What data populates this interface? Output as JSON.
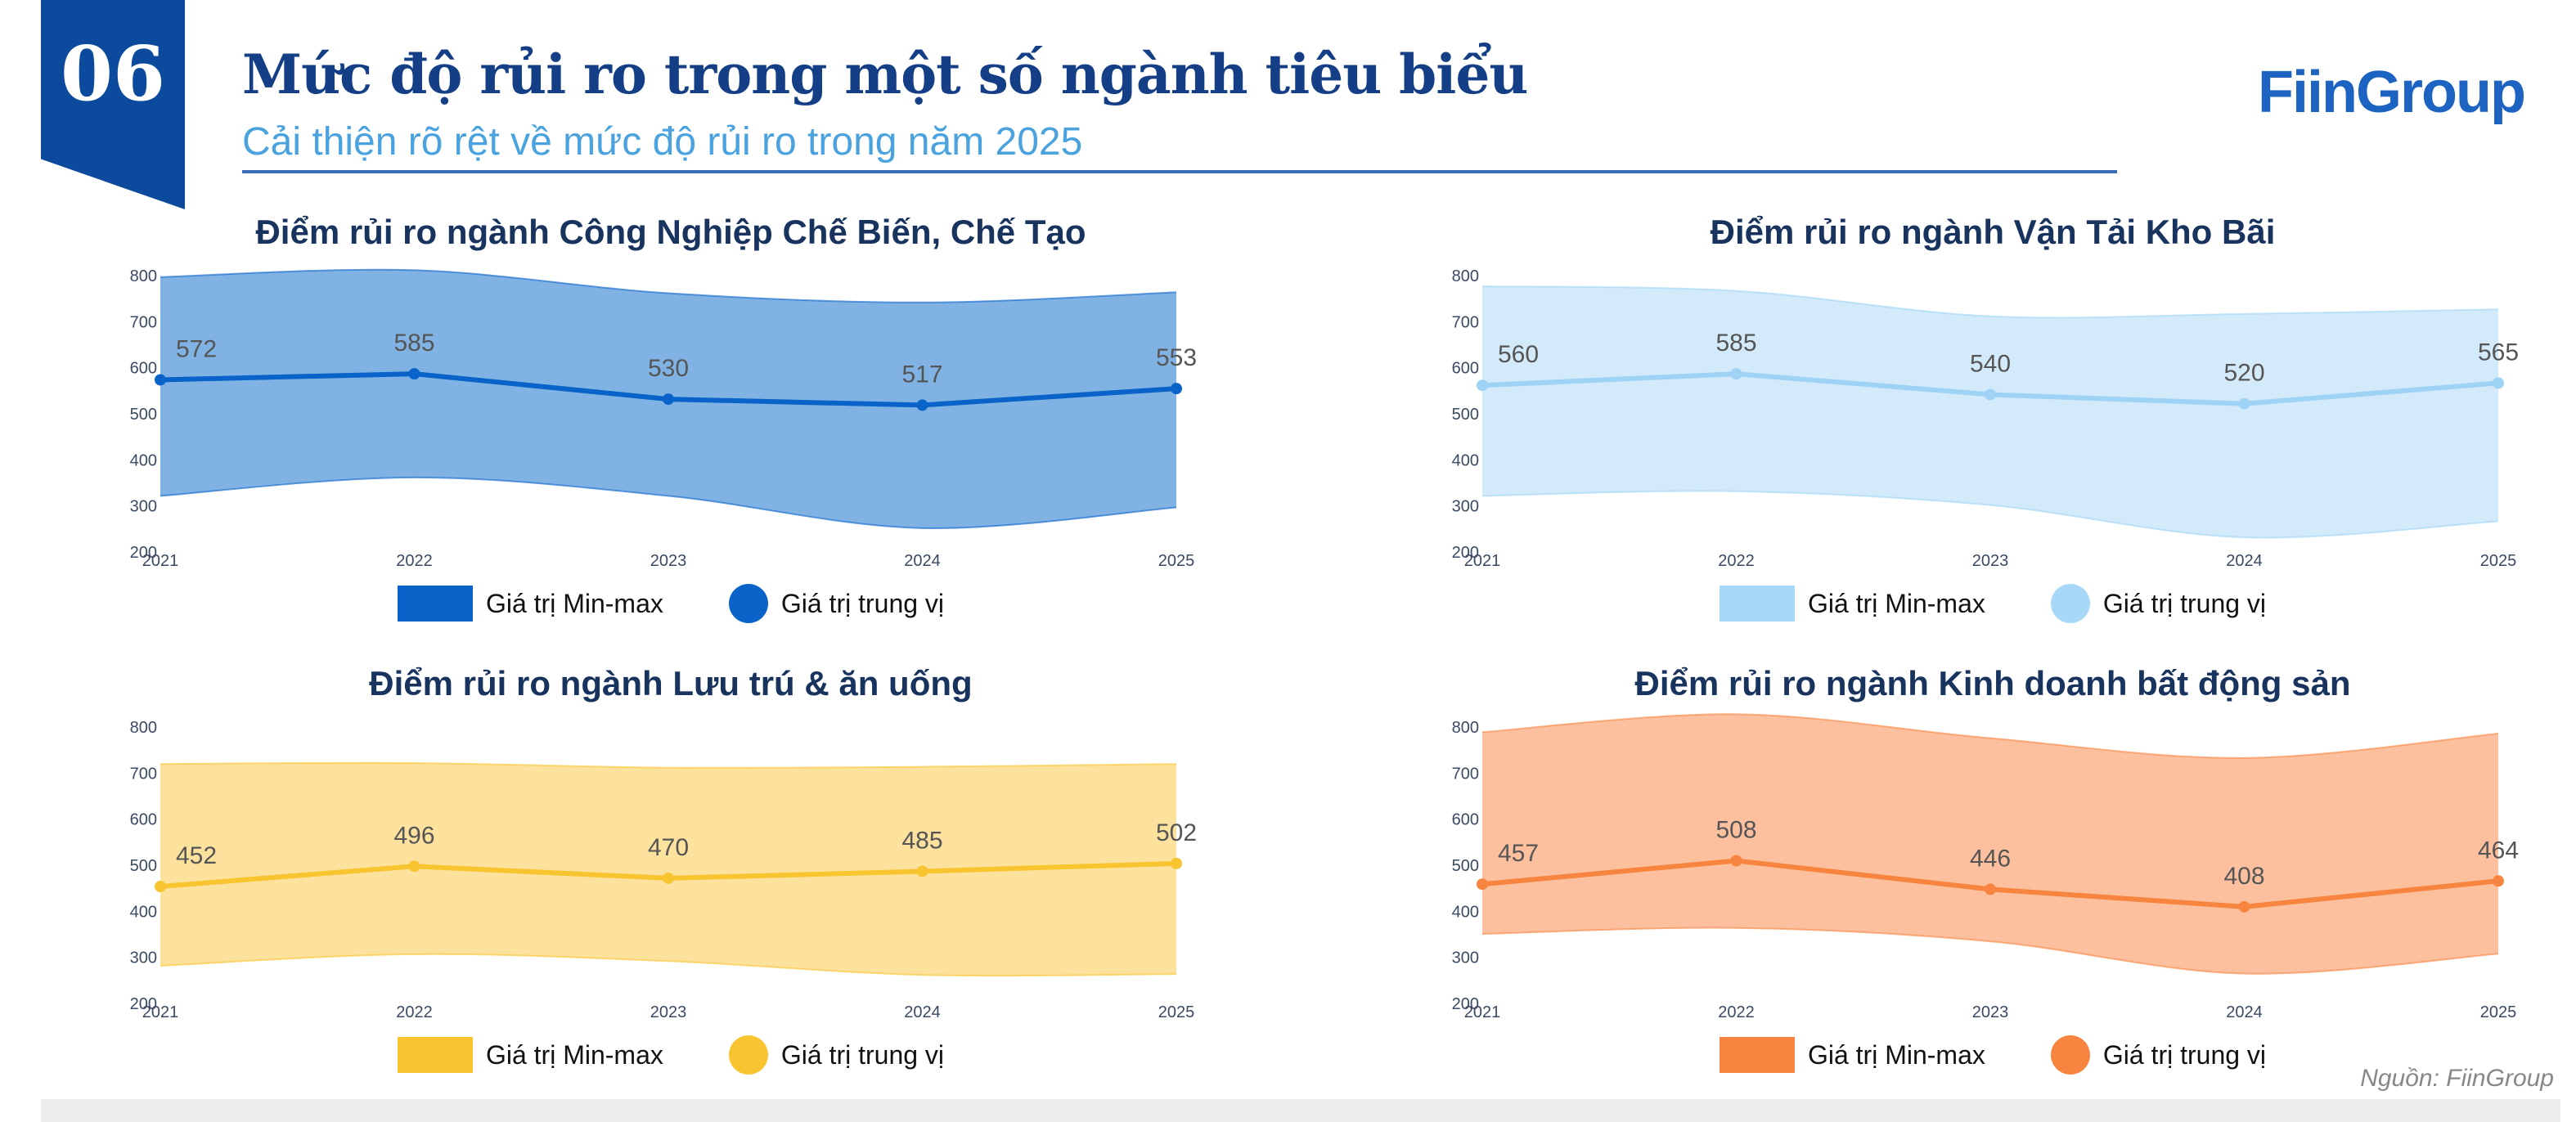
{
  "header": {
    "number": "06",
    "title": "Mức độ rủi ro trong một số ngành tiêu biểu",
    "subtitle": "Cải thiện rõ rệt về mức độ rủi ro trong năm 2025",
    "logo": "FiinGroup"
  },
  "source": "Nguồn: FiinGroup",
  "chart_data": [
    {
      "type": "area",
      "title": "Điểm rủi ro ngành Công Nghiệp Chế Biến, Chế Tạo",
      "categories": [
        "2021",
        "2022",
        "2023",
        "2024",
        "2025"
      ],
      "ylim": [
        200,
        800
      ],
      "yticks": [
        200,
        300,
        400,
        500,
        600,
        700,
        800
      ],
      "band_color": "#80b3e4",
      "line_color": "#0a63c9",
      "legend_color": "#0a63c9",
      "series": [
        {
          "name": "Giá trị Min-max",
          "min": [
            320,
            360,
            320,
            250,
            295
          ],
          "max": [
            795,
            810,
            760,
            740,
            762
          ]
        },
        {
          "name": "Giá trị trung vị",
          "values": [
            572,
            585,
            530,
            517,
            553
          ]
        }
      ]
    },
    {
      "type": "area",
      "title": "Điểm rủi ro ngành Vận Tải Kho Bãi",
      "categories": [
        "2021",
        "2022",
        "2023",
        "2024",
        "2025"
      ],
      "ylim": [
        200,
        800
      ],
      "yticks": [
        200,
        300,
        400,
        500,
        600,
        700,
        800
      ],
      "band_color": "#d3eafb",
      "line_color": "#9fd3f5",
      "legend_color": "#a7d8f7",
      "series": [
        {
          "name": "Giá trị Min-max",
          "min": [
            320,
            330,
            300,
            230,
            265
          ],
          "max": [
            775,
            765,
            710,
            715,
            725
          ]
        },
        {
          "name": "Giá trị trung vị",
          "values": [
            560,
            585,
            540,
            520,
            565
          ]
        }
      ]
    },
    {
      "type": "area",
      "title": "Điểm rủi ro ngành Lưu trú & ăn uống",
      "categories": [
        "2021",
        "2022",
        "2023",
        "2024",
        "2025"
      ],
      "ylim": [
        200,
        800
      ],
      "yticks": [
        200,
        300,
        400,
        500,
        600,
        700,
        800
      ],
      "band_color": "#fde29e",
      "line_color": "#f8c430",
      "legend_color": "#f8c430",
      "series": [
        {
          "name": "Giá trị Min-max",
          "min": [
            280,
            305,
            290,
            260,
            262
          ],
          "max": [
            718,
            720,
            710,
            712,
            718
          ]
        },
        {
          "name": "Giá trị trung vị",
          "values": [
            452,
            496,
            470,
            485,
            502
          ]
        }
      ]
    },
    {
      "type": "area",
      "title": "Điểm rủi ro ngành Kinh doanh bất động sản",
      "categories": [
        "2021",
        "2022",
        "2023",
        "2024",
        "2025"
      ],
      "ylim": [
        200,
        800
      ],
      "yticks": [
        200,
        300,
        400,
        500,
        600,
        700,
        800
      ],
      "band_color": "#fdc09e",
      "line_color": "#f7843f",
      "legend_color": "#f7843f",
      "series": [
        {
          "name": "Giá trị Min-max",
          "min": [
            349,
            362,
            333,
            263,
            306
          ],
          "max": [
            787,
            826,
            774,
            731,
            784
          ]
        },
        {
          "name": "Giá trị trung vị",
          "values": [
            457,
            508,
            446,
            408,
            464
          ]
        }
      ]
    }
  ]
}
